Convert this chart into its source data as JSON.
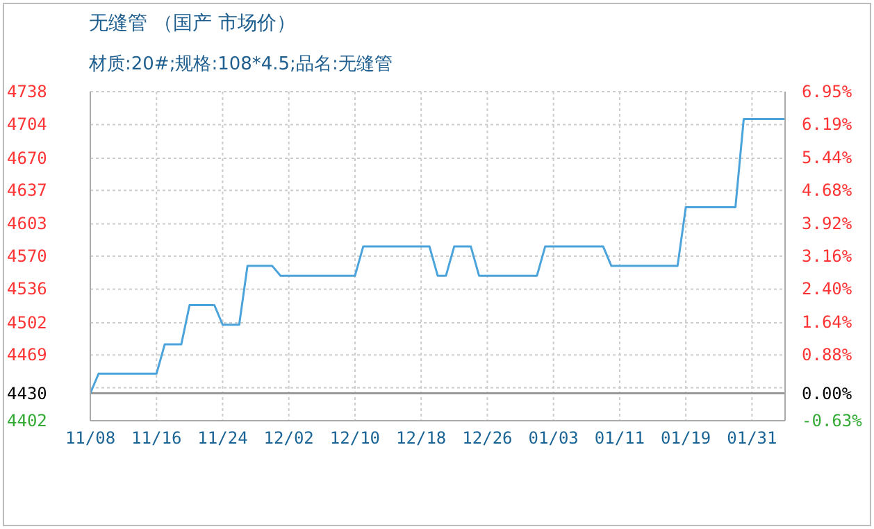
{
  "chart_data": {
    "type": "line",
    "title": "无缝管 （国产 市场价）",
    "subtitle": "材质:20#;规格:108*4.5;品名:无缝管",
    "categories": [
      "11/08",
      null,
      null,
      null,
      null,
      null,
      null,
      null,
      "11/16",
      null,
      null,
      null,
      null,
      null,
      null,
      null,
      "11/24",
      null,
      null,
      null,
      null,
      null,
      null,
      null,
      "12/02",
      null,
      null,
      null,
      null,
      null,
      null,
      null,
      "12/10",
      null,
      null,
      null,
      null,
      null,
      null,
      null,
      "12/18",
      null,
      null,
      null,
      null,
      null,
      null,
      null,
      "12/26",
      null,
      null,
      null,
      null,
      null,
      null,
      null,
      "01/03",
      null,
      null,
      null,
      null,
      null,
      null,
      null,
      "01/11",
      null,
      null,
      null,
      null,
      null,
      null,
      null,
      "01/19",
      null,
      null,
      null,
      null,
      null,
      null,
      null,
      "01/31",
      null,
      null,
      null,
      null
    ],
    "series": [
      {
        "color": "#4ba3dc",
        "values": [
          4430,
          4450,
          4450,
          4450,
          4450,
          4450,
          4450,
          4450,
          4450,
          4480,
          4480,
          4480,
          4520,
          4520,
          4520,
          4520,
          4500,
          4500,
          4500,
          4560,
          4560,
          4560,
          4560,
          4550,
          4550,
          4550,
          4550,
          4550,
          4550,
          4550,
          4550,
          4550,
          4550,
          4580,
          4580,
          4580,
          4580,
          4580,
          4580,
          4580,
          4580,
          4580,
          4550,
          4550,
          4580,
          4580,
          4580,
          4550,
          4550,
          4550,
          4550,
          4550,
          4550,
          4550,
          4550,
          4580,
          4580,
          4580,
          4580,
          4580,
          4580,
          4580,
          4580,
          4560,
          4560,
          4560,
          4560,
          4560,
          4560,
          4560,
          4560,
          4560,
          4620,
          4620,
          4620,
          4620,
          4620,
          4620,
          4620,
          4710,
          4710,
          4710,
          4710,
          4710,
          4710
        ]
      }
    ],
    "ylim": [
      4402,
      4738
    ],
    "yticks": [
      4402,
      4430,
      {
        "value": 4435.6,
        "label": null
      },
      {
        "value": 4469.2,
        "label": "4469"
      },
      4502,
      {
        "value": 4536.4,
        "label": "4536"
      },
      4570,
      4603,
      {
        "value": 4637.2,
        "label": "4637"
      },
      4670,
      {
        "value": 4704.4,
        "label": "4704"
      },
      4738
    ],
    "y2lim": [
      -0.63,
      6.95
    ],
    "y2ticks": [
      {
        "value": -0.63,
        "label": "-0.63%"
      },
      {
        "value": 0,
        "label": "0.00%"
      },
      {
        "value": 0.885,
        "label": "0.88%"
      },
      {
        "value": 1.643,
        "label": "1.64%"
      },
      {
        "value": 2.402,
        "label": "2.40%"
      },
      {
        "value": 3.16,
        "label": "3.16%"
      },
      {
        "value": 3.919,
        "label": "3.92%"
      },
      {
        "value": 4.677,
        "label": "4.68%"
      },
      {
        "value": 5.436,
        "label": "5.44%"
      },
      {
        "value": 6.194,
        "label": "6.19%"
      },
      {
        "value": 6.95,
        "label": "6.95%"
      }
    ],
    "grid": true,
    "ref_lines": [
      {
        "axis": "y",
        "value": 4430,
        "color": "#999999"
      }
    ]
  }
}
